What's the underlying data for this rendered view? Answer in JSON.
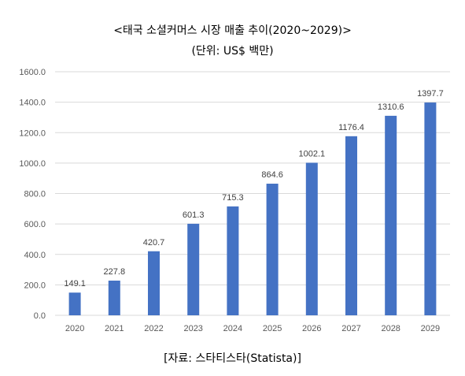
{
  "chart_data": {
    "type": "bar",
    "title": "<태국 소셜커머스 시장 매출 추이(2020~2029)>",
    "subtitle": "(단위: US$ 백만)",
    "source": "[자료: 스타티스타(Statista)]",
    "categories": [
      "2020",
      "2021",
      "2022",
      "2023",
      "2024",
      "2025",
      "2026",
      "2027",
      "2028",
      "2029"
    ],
    "values": [
      149.1,
      227.8,
      420.7,
      601.3,
      715.3,
      864.6,
      1002.1,
      1176.4,
      1310.6,
      1397.7
    ],
    "data_labels": [
      "149.1",
      "227.8",
      "420.7",
      "601.3",
      "715.3",
      "864.6",
      "1002.1",
      "1176.4",
      "1310.6",
      "1397.7"
    ],
    "y_ticks": [
      "0.0",
      "200.0",
      "400.0",
      "600.0",
      "800.0",
      "1000.0",
      "1200.0",
      "1400.0",
      "1600.0"
    ],
    "ylim": [
      0,
      1600
    ],
    "grid": true,
    "legend": "none",
    "bar_color": "#4472C4",
    "grid_color": "#D9D9D9"
  }
}
